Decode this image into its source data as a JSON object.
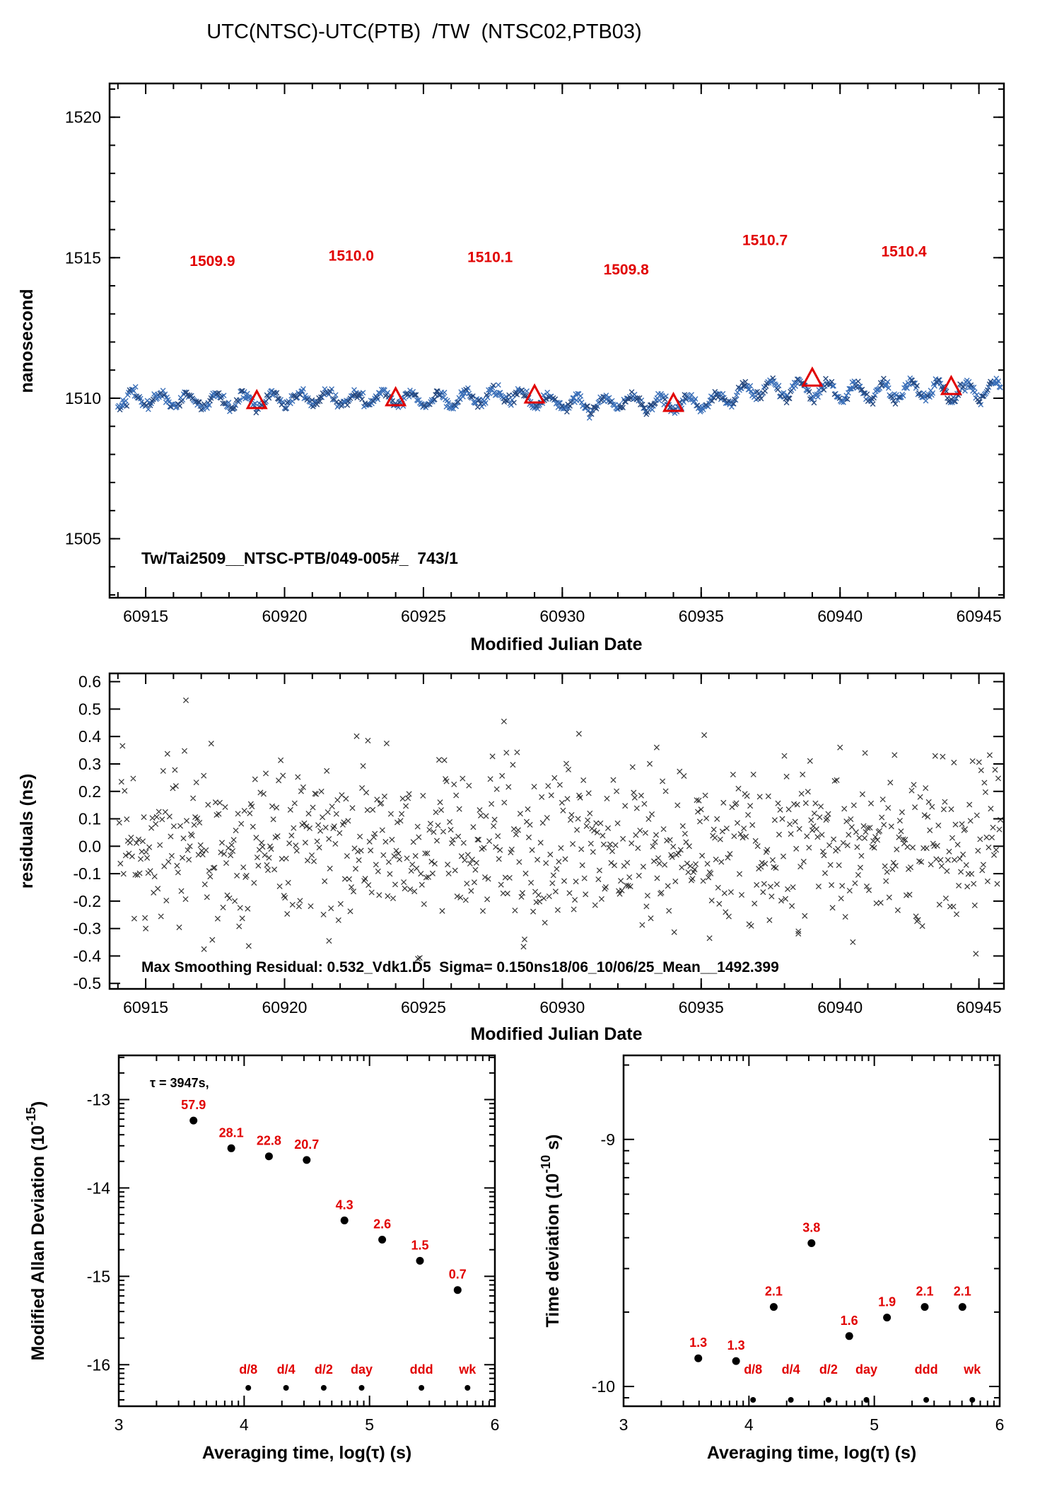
{
  "title": "UTC(NTSC)-UTC(PTB)  /TW  (NTSC02,PTB03)",
  "colors": {
    "accent_red": "#e10000",
    "point_blue": "#3a6fb8",
    "point_dark_blue": "#26487e",
    "residual_gray": "#333333"
  },
  "chart_data": [
    {
      "id": "time-series",
      "type": "scatter",
      "xlabel": "Modified Julian Date",
      "ylabel": "nanosecond",
      "xlim": [
        60913.7,
        60945.9
      ],
      "ylim": [
        1502.9,
        1521.2
      ],
      "xticks": [
        60915,
        60920,
        60925,
        60930,
        60935,
        60940,
        60945
      ],
      "yticks": [
        1505,
        1510,
        1515,
        1520
      ],
      "grid": false,
      "annotation": "Tw/Tai2509__NTSC-PTB/049-005#_  743/1",
      "marker": "x",
      "marker_colors": [
        "#3a6fb8",
        "#26487e"
      ],
      "series_note": "approx. 900 dense two-way time-transfer points around 1510 ns with diurnal oscillation; synthetic reconstruction parameters below",
      "series_gen": {
        "seed": 42,
        "x_start": 60914.0,
        "x_end": 60945.8,
        "step": 0.0353,
        "noise_sd": 0.09,
        "diurnal_amp_early": 0.24,
        "diurnal_amp_late": 0.32,
        "amp_change_x": 60936
      },
      "mean_profile": [
        [
          60914,
          1510.0
        ],
        [
          60917,
          1509.9
        ],
        [
          60919,
          1509.9
        ],
        [
          60921,
          1510.0
        ],
        [
          60924,
          1510.0
        ],
        [
          60926,
          1509.95
        ],
        [
          60928,
          1510.1
        ],
        [
          60929.5,
          1509.85
        ],
        [
          60931,
          1509.75
        ],
        [
          60932.5,
          1509.9
        ],
        [
          60934,
          1509.75
        ],
        [
          60935.5,
          1509.9
        ],
        [
          60937,
          1510.3
        ],
        [
          60939,
          1510.3
        ],
        [
          60941,
          1510.2
        ],
        [
          60943,
          1510.3
        ],
        [
          60944.5,
          1510.2
        ],
        [
          60946,
          1510.35
        ]
      ],
      "averages": {
        "marker": "open-triangle",
        "color": "#e10000",
        "points": [
          {
            "x": 60919,
            "y": 1509.9,
            "label": "1509.9",
            "label_x": 60917.4,
            "label_y": 1514.7
          },
          {
            "x": 60924,
            "y": 1510.0,
            "label": "1510.0",
            "label_x": 60922.4,
            "label_y": 1514.9
          },
          {
            "x": 60929,
            "y": 1510.1,
            "label": "1510.1",
            "label_x": 60927.4,
            "label_y": 1514.85
          },
          {
            "x": 60934,
            "y": 1509.8,
            "label": "1509.8",
            "label_x": 60932.3,
            "label_y": 1514.4
          },
          {
            "x": 60939,
            "y": 1510.7,
            "label": "1510.7",
            "label_x": 60937.3,
            "label_y": 1515.45
          },
          {
            "x": 60944,
            "y": 1510.4,
            "label": "1510.4",
            "label_x": 60942.3,
            "label_y": 1515.05
          }
        ]
      }
    },
    {
      "id": "residuals",
      "type": "scatter",
      "xlabel": "Modified Julian Date",
      "ylabel": "residuals (ns)",
      "xlim": [
        60913.7,
        60945.9
      ],
      "ylim": [
        -0.52,
        0.63
      ],
      "xticks": [
        60915,
        60920,
        60925,
        60930,
        60935,
        60940,
        60945
      ],
      "yticks": [
        0.6,
        0.5,
        0.4,
        0.3,
        0.2,
        0.1,
        0.0,
        -0.1,
        -0.2,
        -0.3,
        -0.4,
        -0.5
      ],
      "grid": false,
      "annotation": "Max Smoothing Residual: 0.532_Vdk1.D5  Sigma= 0.150ns18/06_10/06/25_Mean__1492.399",
      "marker": "x",
      "marker_color": "#333333",
      "series_note": "approx. 830 smoothing residuals, zero mean, sd 0.15 ns; synthetic reconstruction parameters below",
      "series_gen": {
        "seed": 99,
        "x_start": 60914.05,
        "x_end": 60945.8,
        "step": 0.0385,
        "noise_sd": 0.155
      },
      "outliers": [
        [
          60916.45,
          0.532
        ],
        [
          60927.9,
          0.455
        ],
        [
          60930.6,
          0.41
        ],
        [
          60923.0,
          0.385
        ],
        [
          60933.4,
          0.36
        ],
        [
          60940.9,
          0.34
        ],
        [
          60917.1,
          -0.375
        ],
        [
          60924.8,
          -0.41
        ],
        [
          60921.6,
          -0.345
        ],
        [
          60935.3,
          -0.335
        ],
        [
          60915.0,
          -0.3
        ],
        [
          60938.5,
          -0.31
        ],
        [
          60944.1,
          0.305
        ]
      ]
    },
    {
      "id": "mdev",
      "type": "scatter",
      "xlabel": "Averaging time, log(τ) (s)",
      "ylabel": "Modified Allan Deviation (10^-15)",
      "xlim": [
        3,
        6
      ],
      "ylim": [
        -16.47,
        -12.5
      ],
      "xticks": [
        3,
        4,
        5,
        6
      ],
      "yticks": [
        -13,
        -14,
        -15,
        -16
      ],
      "grid": false,
      "annotation": "τ = 3947s,",
      "marker": "filled-circle",
      "value_unit": "1e-15",
      "points": [
        {
          "log_tau": 3.596,
          "value": 57.9,
          "log_dev": -13.237
        },
        {
          "log_tau": 3.897,
          "value": 28.1,
          "log_dev": -13.551
        },
        {
          "log_tau": 4.198,
          "value": 22.8,
          "log_dev": -13.642
        },
        {
          "log_tau": 4.499,
          "value": 20.7,
          "log_dev": -13.684
        },
        {
          "log_tau": 4.8,
          "value": 4.3,
          "log_dev": -14.367
        },
        {
          "log_tau": 5.101,
          "value": 2.6,
          "log_dev": -14.585
        },
        {
          "log_tau": 5.402,
          "value": 1.5,
          "log_dev": -14.824
        },
        {
          "log_tau": 5.703,
          "value": 0.7,
          "log_dev": -15.155
        }
      ],
      "period_markers": {
        "labels": [
          "d/8",
          "d/4",
          "d/2",
          "day",
          "ddd",
          "wk"
        ],
        "log_tau": [
          4.033,
          4.334,
          4.635,
          4.937,
          5.414,
          5.782
        ],
        "color": "#e10000"
      }
    },
    {
      "id": "tdev",
      "type": "scatter",
      "xlabel": "Averaging time, log(τ) (s)",
      "ylabel": "Time deviation (10^-10 s)",
      "xlim": [
        3,
        6
      ],
      "ylim": [
        -10.08,
        -8.66
      ],
      "xticks": [
        3,
        4,
        5,
        6
      ],
      "yticks": [
        -9,
        -10
      ],
      "grid": false,
      "marker": "filled-circle",
      "value_unit": "1e-10 s",
      "points": [
        {
          "log_tau": 3.596,
          "value": 1.3,
          "log_dev": -9.886
        },
        {
          "log_tau": 3.897,
          "value": 1.3,
          "log_dev": -9.897
        },
        {
          "log_tau": 4.198,
          "value": 2.1,
          "log_dev": -9.678
        },
        {
          "log_tau": 4.499,
          "value": 3.8,
          "log_dev": -9.42
        },
        {
          "log_tau": 4.8,
          "value": 1.6,
          "log_dev": -9.796
        },
        {
          "log_tau": 5.101,
          "value": 1.9,
          "log_dev": -9.721
        },
        {
          "log_tau": 5.402,
          "value": 2.1,
          "log_dev": -9.678
        },
        {
          "log_tau": 5.703,
          "value": 2.1,
          "log_dev": -9.678
        }
      ],
      "period_markers": {
        "labels": [
          "d/8",
          "d/4",
          "d/2",
          "day",
          "ddd",
          "wk"
        ],
        "log_tau": [
          4.033,
          4.334,
          4.635,
          4.937,
          5.414,
          5.782
        ],
        "color": "#e10000"
      }
    }
  ]
}
